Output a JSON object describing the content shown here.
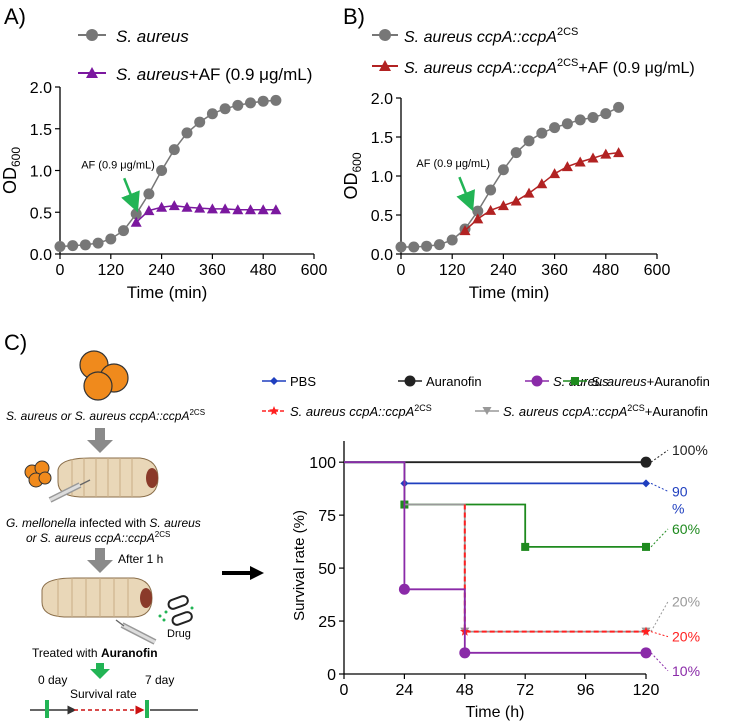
{
  "panels": {
    "a": "A)",
    "b": "B)",
    "c": "C)"
  },
  "colors": {
    "gray": "#777777",
    "purple": "#7b189f",
    "darkred": "#b22222",
    "blue": "#1f3fbf",
    "black": "#222222",
    "violet": "#8a2aa8",
    "green": "#1e8a1e",
    "red": "#ff2020",
    "lightgray": "#999999",
    "arrow_green": "#22b455"
  },
  "chart_data": [
    {
      "id": "A",
      "type": "line",
      "ylabel": "OD",
      "ylabel_sub": "600",
      "xlabel": "Time   (min)",
      "xlim": [
        0,
        600
      ],
      "ylim": [
        0,
        2.0
      ],
      "x_ticks": [
        "0",
        "120",
        "240",
        "360",
        "480",
        "600"
      ],
      "x_tick_values": [
        0,
        120,
        240,
        360,
        480,
        600
      ],
      "y_ticks": [
        "0.0",
        "0.5",
        "1.0",
        "1.5",
        "2.0"
      ],
      "y_tick_values": [
        0,
        0.5,
        1.0,
        1.5,
        2.0
      ],
      "annotation": "AF (0.9 μg/mL)",
      "annotation_x": 180,
      "annotation_y": 0.5,
      "legend": [
        {
          "name": "S. aureus",
          "extra": ""
        },
        {
          "name": "S. aureus",
          "extra": "+AF (0.9 μg/mL)"
        }
      ],
      "series": [
        {
          "name": "S. aureus",
          "marker": "circle",
          "color_key": "gray",
          "x": [
            0,
            30,
            60,
            90,
            120,
            150,
            180,
            210,
            240,
            270,
            300,
            330,
            360,
            390,
            420,
            450,
            480,
            510
          ],
          "y": [
            0.09,
            0.1,
            0.11,
            0.13,
            0.18,
            0.28,
            0.48,
            0.72,
            1.0,
            1.25,
            1.45,
            1.58,
            1.68,
            1.74,
            1.78,
            1.81,
            1.83,
            1.84
          ]
        },
        {
          "name": "S. aureus+AF (0.9 μg/mL)",
          "marker": "triangle",
          "color_key": "purple",
          "x": [
            180,
            210,
            240,
            270,
            300,
            330,
            360,
            390,
            420,
            450,
            480,
            510
          ],
          "y": [
            0.38,
            0.52,
            0.56,
            0.58,
            0.56,
            0.55,
            0.54,
            0.54,
            0.53,
            0.53,
            0.53,
            0.53
          ]
        }
      ]
    },
    {
      "id": "B",
      "type": "line",
      "ylabel": "OD",
      "ylabel_sub": "600",
      "xlabel": "Time   (min)",
      "xlim": [
        0,
        600
      ],
      "ylim": [
        0,
        2.0
      ],
      "x_ticks": [
        "0",
        "120",
        "240",
        "360",
        "480",
        "600"
      ],
      "x_tick_values": [
        0,
        120,
        240,
        360,
        480,
        600
      ],
      "y_ticks": [
        "0.0",
        "0.5",
        "1.0",
        "1.5",
        "2.0"
      ],
      "y_tick_values": [
        0,
        0.5,
        1.0,
        1.5,
        2.0
      ],
      "annotation": "AF (0.9 μg/mL)",
      "annotation_x": 165,
      "annotation_y": 0.55,
      "legend": [
        {
          "name": "S. aureus ccpA::ccpA",
          "sup": "2CS",
          "extra": ""
        },
        {
          "name": "S. aureus ccpA::ccpA",
          "sup": "2CS",
          "extra": "+AF (0.9 μg/mL)"
        }
      ],
      "series": [
        {
          "name": "S. aureus ccpA::ccpA2CS",
          "marker": "circle",
          "color_key": "gray",
          "x": [
            0,
            30,
            60,
            90,
            120,
            150,
            180,
            210,
            240,
            270,
            300,
            330,
            360,
            390,
            420,
            450,
            480,
            510
          ],
          "y": [
            0.09,
            0.09,
            0.1,
            0.12,
            0.18,
            0.32,
            0.55,
            0.82,
            1.08,
            1.3,
            1.45,
            1.55,
            1.62,
            1.67,
            1.72,
            1.75,
            1.8,
            1.88
          ]
        },
        {
          "name": "S. aureus ccpA::ccpA2CS+AF (0.9 μg/mL)",
          "marker": "triangle",
          "color_key": "darkred",
          "x": [
            150,
            180,
            210,
            240,
            270,
            300,
            330,
            360,
            390,
            420,
            450,
            480,
            510
          ],
          "y": [
            0.3,
            0.45,
            0.56,
            0.62,
            0.68,
            0.78,
            0.9,
            1.03,
            1.12,
            1.18,
            1.23,
            1.28,
            1.3
          ]
        }
      ]
    },
    {
      "id": "C",
      "type": "line",
      "ylabel": "Survival rate (%)",
      "xlabel": "Time   (h)",
      "xlim": [
        0,
        120
      ],
      "ylim": [
        0,
        110
      ],
      "x_ticks": [
        "0",
        "24",
        "48",
        "72",
        "96",
        "120"
      ],
      "x_tick_values": [
        0,
        24,
        48,
        72,
        96,
        120
      ],
      "y_ticks": [
        "0",
        "25",
        "50",
        "75",
        "100"
      ],
      "y_tick_values": [
        0,
        25,
        50,
        75,
        100
      ],
      "legend": [
        {
          "name": "PBS",
          "color_key": "blue",
          "marker": "diamond"
        },
        {
          "name": "Auranofin",
          "color_key": "black",
          "marker": "circle"
        },
        {
          "name": "S. aureus",
          "color_key": "violet",
          "marker": "circle"
        },
        {
          "name": "S. aureus",
          "extra": "+Auranofin",
          "color_key": "green",
          "marker": "square"
        },
        {
          "name": "S. aureus ccpA::ccpA",
          "sup": "2CS",
          "color_key": "red",
          "marker": "star"
        },
        {
          "name": "S. aureus ccpA::ccpA",
          "sup": "2CS",
          "extra": "+Auranofin",
          "color_key": "lightgray",
          "marker": "tri-down"
        }
      ],
      "series": [
        {
          "name": "Auranofin",
          "color_key": "black",
          "marker": "circle",
          "steps": [
            [
              0,
              100
            ],
            [
              120,
              100
            ]
          ],
          "marks": [
            [
              120,
              100
            ]
          ],
          "end_label": "100%"
        },
        {
          "name": "PBS",
          "color_key": "blue",
          "marker": "diamond",
          "steps": [
            [
              0,
              100
            ],
            [
              24,
              100
            ],
            [
              24,
              90
            ],
            [
              120,
              90
            ]
          ],
          "marks": [
            [
              24,
              90
            ],
            [
              120,
              90
            ]
          ],
          "end_label": "90",
          "end_label2": "%"
        },
        {
          "name": "S. aureus+Auranofin",
          "color_key": "green",
          "marker": "square",
          "steps": [
            [
              0,
              100
            ],
            [
              24,
              100
            ],
            [
              24,
              80
            ],
            [
              72,
              80
            ],
            [
              72,
              60
            ],
            [
              120,
              60
            ]
          ],
          "marks": [
            [
              24,
              80
            ],
            [
              72,
              60
            ],
            [
              120,
              60
            ]
          ],
          "end_label": "60%"
        },
        {
          "name": "S. aureus ccpA::ccpA2CS+Auranofin",
          "color_key": "lightgray",
          "marker": "tri-down",
          "steps": [
            [
              0,
              100
            ],
            [
              24,
              100
            ],
            [
              24,
              80
            ],
            [
              48,
              80
            ],
            [
              48,
              20
            ],
            [
              120,
              20
            ]
          ],
          "marks": [
            [
              48,
              20
            ],
            [
              120,
              20
            ]
          ],
          "end_label": "20%"
        },
        {
          "name": "S. aureus ccpA::ccpA2CS",
          "color_key": "red",
          "marker": "star",
          "dashed": true,
          "steps": [
            [
              48,
              80
            ],
            [
              48,
              20
            ],
            [
              120,
              20
            ]
          ],
          "marks": [
            [
              48,
              20
            ],
            [
              120,
              20
            ]
          ],
          "end_label": "20%"
        },
        {
          "name": "S. aureus",
          "color_key": "violet",
          "marker": "circle",
          "steps": [
            [
              0,
              100
            ],
            [
              24,
              100
            ],
            [
              24,
              40
            ],
            [
              48,
              40
            ],
            [
              48,
              10
            ],
            [
              120,
              10
            ]
          ],
          "marks": [
            [
              24,
              40
            ],
            [
              48,
              10
            ],
            [
              120,
              10
            ]
          ],
          "end_label": "10%"
        }
      ]
    }
  ],
  "schematic": {
    "strains_line1": "S. aureus",
    "strains_or": "or",
    "strains_line2": "S. aureus ccpA::ccpA",
    "strains_sup": "2CS",
    "infected_line1_a": "G. mellonella",
    "infected_line1_b": "infected with",
    "infected_line1_c": "S. aureus",
    "infected_line2_a": "or",
    "infected_line2_b": "S. aureus ccpA::ccpA",
    "infected_line2_sup": "2CS",
    "after": "After 1 h",
    "drug": "Drug",
    "treated_a": "Treated with",
    "treated_b": "Auranofin",
    "day0": "0 day",
    "day7": "7 day",
    "survival": "Survival rate"
  }
}
